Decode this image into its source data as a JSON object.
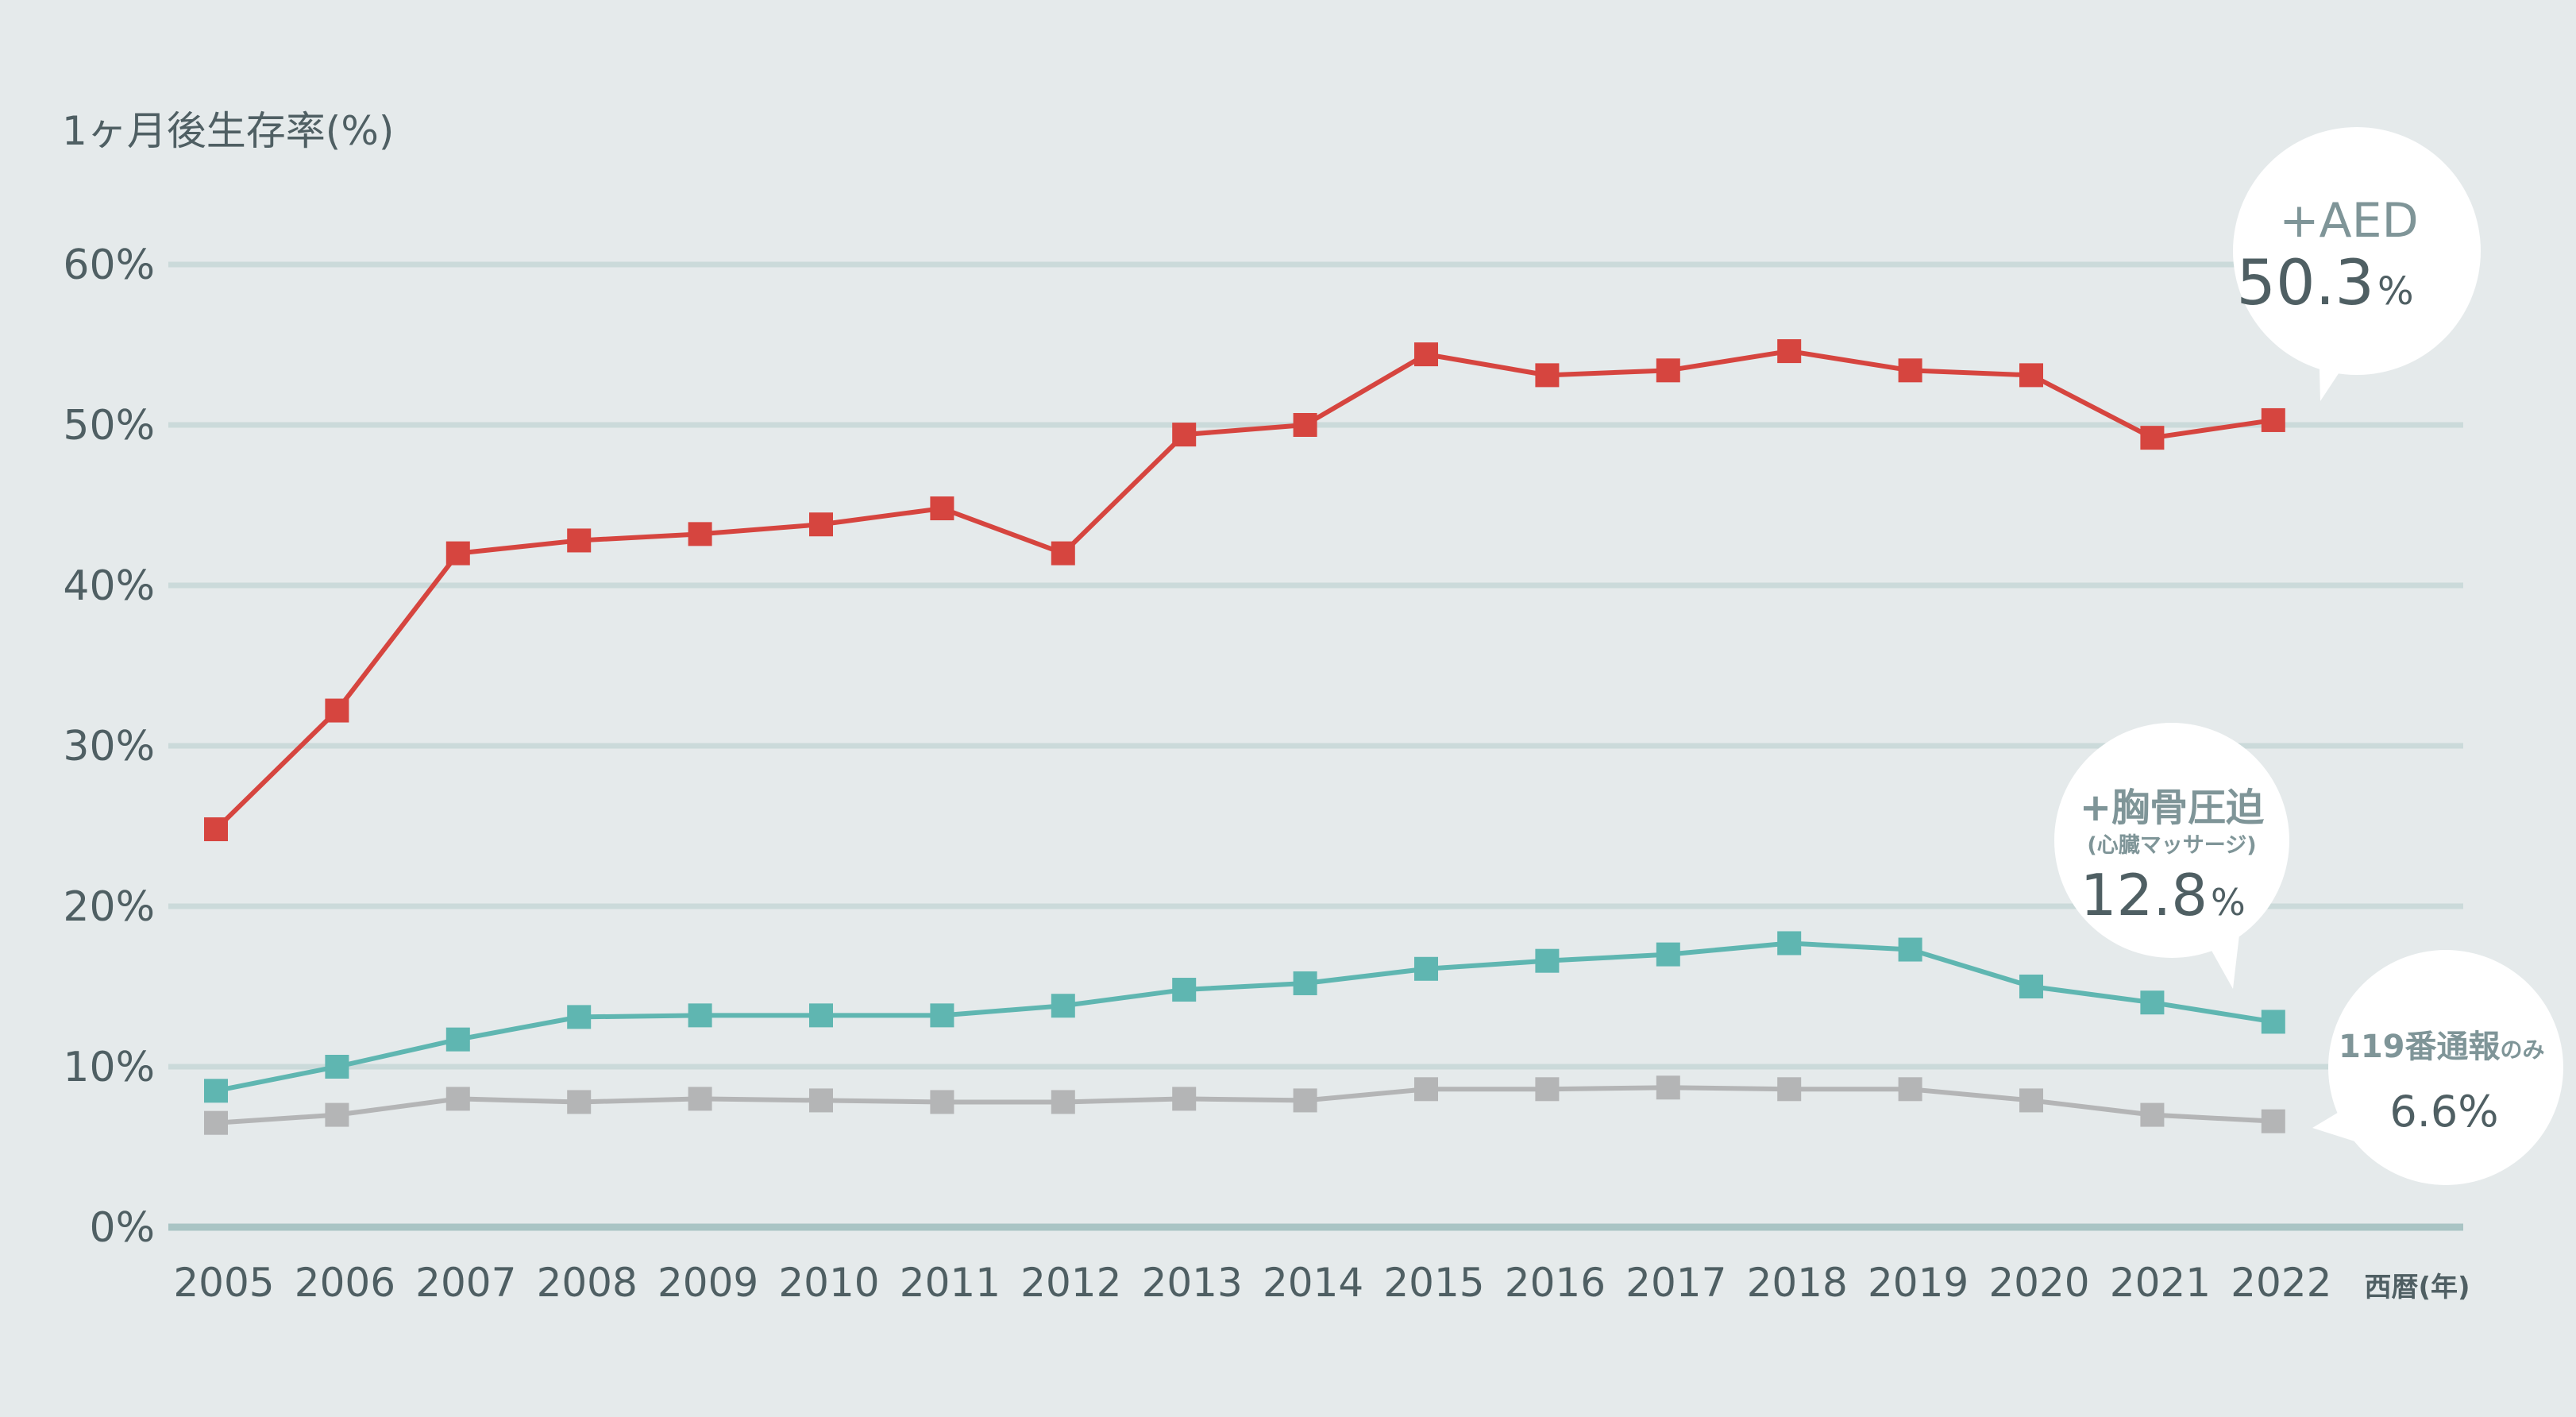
{
  "chart_data": {
    "type": "line",
    "ylabel": "1ヶ月後生存率(%)",
    "xunit": "西暦(年)",
    "ylim": [
      0,
      60
    ],
    "yticks": [
      {
        "value": 0,
        "label": "0%"
      },
      {
        "value": 10,
        "label": "10%"
      },
      {
        "value": 20,
        "label": "20%"
      },
      {
        "value": 30,
        "label": "30%"
      },
      {
        "value": 40,
        "label": "40%"
      },
      {
        "value": 50,
        "label": "50%"
      },
      {
        "value": 60,
        "label": "60%"
      }
    ],
    "grid": true,
    "categories": [
      "2005",
      "2006",
      "2007",
      "2008",
      "2009",
      "2010",
      "2011",
      "2012",
      "2013",
      "2014",
      "2015",
      "2016",
      "2017",
      "2018",
      "2019",
      "2020",
      "2021",
      "2022"
    ],
    "series": [
      {
        "color": "#d6453f",
        "values": [
          24.8,
          32.2,
          42.0,
          42.8,
          43.2,
          43.8,
          44.8,
          42.0,
          49.4,
          50.0,
          54.4,
          53.1,
          53.4,
          54.6,
          53.4,
          53.1,
          49.2,
          50.3
        ]
      },
      {
        "color": "#5fb6b1",
        "values": [
          8.5,
          10.0,
          11.7,
          13.1,
          13.2,
          13.2,
          13.2,
          13.8,
          14.8,
          15.2,
          16.1,
          16.6,
          17.0,
          17.7,
          17.3,
          15.0,
          14.0,
          12.8
        ]
      },
      {
        "color": "#b4b5b6",
        "values": [
          6.5,
          7.0,
          8.0,
          7.8,
          8.0,
          7.9,
          7.8,
          7.8,
          8.0,
          7.9,
          8.6,
          8.6,
          8.7,
          8.6,
          8.6,
          7.9,
          7.0,
          6.6
        ]
      }
    ],
    "callouts": {
      "aed": {
        "head": "+AED",
        "value": "50.3",
        "unit": "%"
      },
      "cpr": {
        "head": "+胸骨圧迫",
        "sub": "(心臓マッサージ)",
        "value": "12.8",
        "unit": "%"
      },
      "call": {
        "head": "119番通報",
        "head_small": "のみ",
        "value": "6.6%"
      }
    }
  }
}
